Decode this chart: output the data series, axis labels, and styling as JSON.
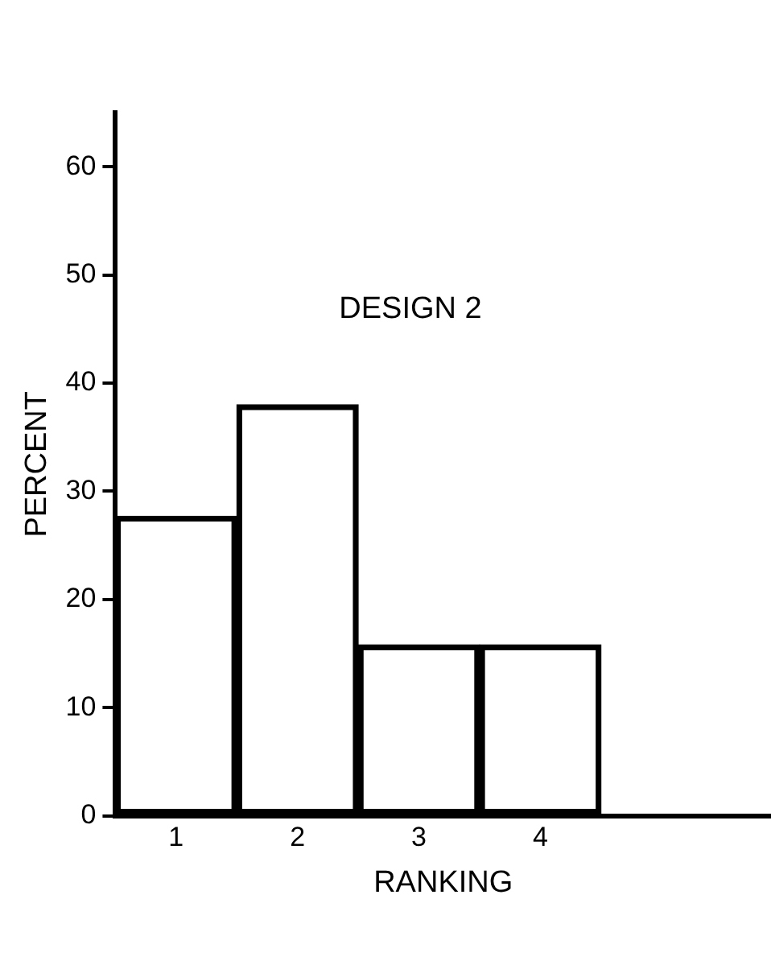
{
  "chart_data": {
    "type": "histogram",
    "title": "DESIGN 2",
    "xlabel": "RANKING",
    "ylabel": "PERCENT",
    "bins": [
      0.5,
      1.5,
      2.5,
      3.5,
      4.5
    ],
    "values": [
      27.7,
      38,
      15.8,
      15.8
    ],
    "color": "#000000",
    "xlim": [
      0.5,
      5.9
    ],
    "xticks": [
      1,
      2,
      3,
      4
    ],
    "ylim": [
      0,
      65
    ],
    "yticks": [
      0,
      10,
      20,
      30,
      40,
      50,
      60
    ],
    "grid": false,
    "legend": false
  }
}
